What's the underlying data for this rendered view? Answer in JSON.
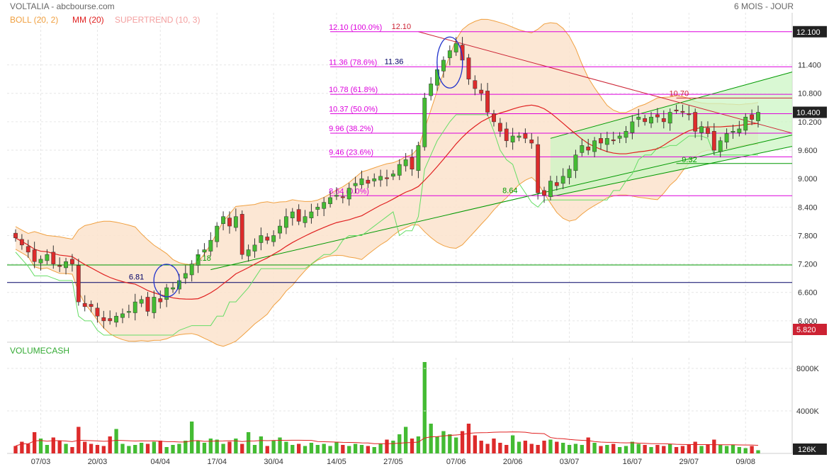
{
  "header": {
    "title": "VOLTALIA - abcbourse.com",
    "period": "6 MOIS - JOUR",
    "legend": [
      {
        "label": "BOLL (20, 2)",
        "color": "#f0a040"
      },
      {
        "label": "MM (20)",
        "color": "#e02020"
      },
      {
        "label": "SUPERTREND (10, 3)",
        "color": "#f4a0a0"
      }
    ]
  },
  "colors": {
    "up": "#44bb33",
    "down": "#dd2b2b",
    "boll_fill": "#fbe3cc",
    "boll_line": "#f0a040",
    "mm": "#e02020",
    "supertrend": "#66dd66",
    "fib": "#dd00dd",
    "trend": "#009900",
    "channel_fill": "#ccf5c4",
    "downtrend": "#cc2233",
    "price_tag": "#cc2233"
  },
  "volume_panel": {
    "title": "VOLUMECASH"
  },
  "chart_data": [
    {
      "type": "candlestick",
      "title": "VOLTALIA",
      "ylim": [
        5.55,
        12.5
      ],
      "x_ticks": [
        "07/03",
        "20/03",
        "04/04",
        "17/04",
        "30/04",
        "14/05",
        "27/05",
        "07/06",
        "20/06",
        "03/07",
        "16/07",
        "29/07",
        "09/08"
      ],
      "y_ticks": [
        "6.000",
        "6.600",
        "7.200",
        "7.800",
        "8.400",
        "9.000",
        "9.600",
        "10.200",
        "10.800",
        "11.400"
      ],
      "last_price": "10.400",
      "top_price": "12.100",
      "bottom_price": "5.820",
      "close": [
        7.75,
        7.6,
        7.45,
        7.25,
        7.3,
        7.4,
        7.2,
        7.15,
        7.25,
        7.2,
        6.4,
        6.3,
        6.3,
        6.1,
        6.0,
        6.0,
        6.1,
        6.15,
        6.2,
        6.4,
        6.45,
        6.2,
        6.5,
        6.4,
        6.7,
        6.7,
        6.85,
        7.0,
        7.2,
        7.4,
        7.5,
        7.7,
        8.0,
        8.2,
        8.0,
        8.2,
        7.4,
        7.5,
        7.6,
        7.8,
        7.7,
        7.8,
        8.0,
        8.2,
        8.3,
        8.1,
        8.2,
        8.3,
        8.4,
        8.5,
        8.6,
        8.65,
        8.6,
        8.8,
        8.9,
        9.0,
        8.9,
        9.0,
        9.05,
        9.0,
        9.1,
        9.3,
        9.4,
        9.2,
        9.7,
        10.7,
        11.0,
        11.3,
        11.5,
        11.7,
        11.85,
        11.5,
        11.1,
        10.9,
        10.8,
        10.4,
        10.2,
        10.0,
        9.8,
        9.9,
        9.9,
        9.85,
        9.75,
        8.7,
        8.65,
        8.95,
        8.85,
        9.05,
        9.2,
        9.5,
        9.7,
        9.6,
        9.8,
        9.75,
        9.85,
        9.8,
        9.9,
        10.0,
        10.2,
        10.3,
        10.2,
        10.3,
        10.3,
        10.2,
        10.4,
        10.45,
        10.4,
        10.35,
        10.0,
        10.1,
        9.95,
        9.6,
        9.8,
        9.95,
        10.0,
        10.05,
        10.3,
        10.25,
        10.4
      ],
      "volume": [
        700,
        1100,
        900,
        2000,
        1400,
        800,
        1500,
        1200,
        900,
        600,
        2500,
        1100,
        900,
        800,
        700,
        1600,
        2300,
        900,
        700,
        800,
        1000,
        900,
        1100,
        1200,
        600,
        800,
        900,
        1200,
        3000,
        1200,
        1000,
        1400,
        1300,
        900,
        1100,
        1400,
        900,
        2000,
        800,
        1600,
        700,
        1200,
        1500,
        1100,
        800,
        900,
        700,
        1000,
        800,
        900,
        700,
        1100,
        800,
        700,
        900,
        800,
        700,
        600,
        900,
        1300,
        1200,
        1800,
        2500,
        1400,
        1600,
        8600,
        2800,
        1600,
        2100,
        1800,
        1500,
        2100,
        2800,
        1700,
        1200,
        900,
        1400,
        1000,
        800,
        1700,
        1100,
        1200,
        900,
        800,
        1200,
        1300,
        1100,
        1000,
        800,
        900,
        800,
        1500,
        1000,
        700,
        800,
        900,
        600,
        700,
        1100,
        900,
        800,
        600,
        800,
        700,
        900,
        600,
        700,
        800,
        1100,
        700,
        800,
        1300,
        800,
        700,
        800,
        600,
        500,
        700,
        300
      ],
      "volume_ticks": [
        "8000K",
        "4000K"
      ],
      "last_volume": "126K",
      "fibonacci": [
        {
          "label": "12.10  (100.0%)",
          "value": 12.1
        },
        {
          "label": "11.36  (78.6%)",
          "value": 11.36
        },
        {
          "label": "10.78  (61.8%)",
          "value": 10.78
        },
        {
          "label": "10.37  (50.0%)",
          "value": 10.37
        },
        {
          "label": "9.96  (38.2%)",
          "value": 9.96
        },
        {
          "label": "9.46  (23.6%)",
          "value": 9.46
        },
        {
          "label": "8.64  (0.0%)",
          "value": 8.64
        }
      ],
      "annotations": [
        "12.10",
        "11.36",
        "10.70",
        "9.32",
        "8.64",
        "7.18",
        "6.81"
      ]
    }
  ]
}
